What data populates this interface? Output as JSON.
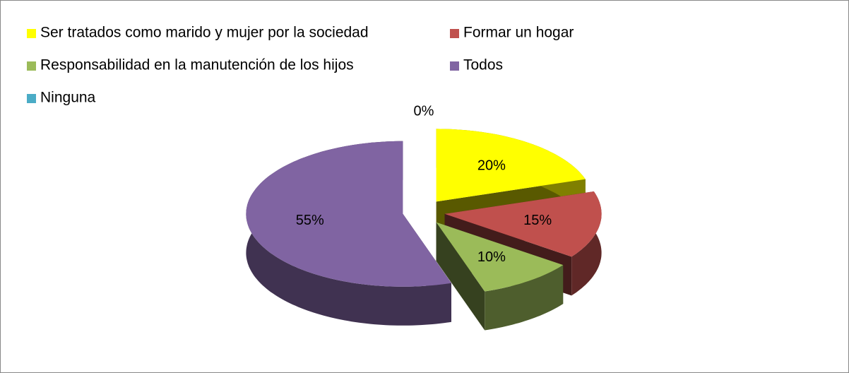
{
  "chart_data": {
    "type": "pie",
    "categories": [
      "Ser tratados como marido y mujer por la sociedad",
      "Formar un hogar",
      "Responsabilidad en la manutención de los hijos",
      "Todos",
      "Ninguna"
    ],
    "values": [
      20,
      15,
      10,
      55,
      0
    ],
    "value_labels": [
      "20%",
      "15%",
      "10%",
      "55%",
      "0%"
    ],
    "colors": [
      "#ffff00",
      "#c0504d",
      "#9bbb59",
      "#8064a2",
      "#4bacc6"
    ],
    "legend": "top"
  }
}
